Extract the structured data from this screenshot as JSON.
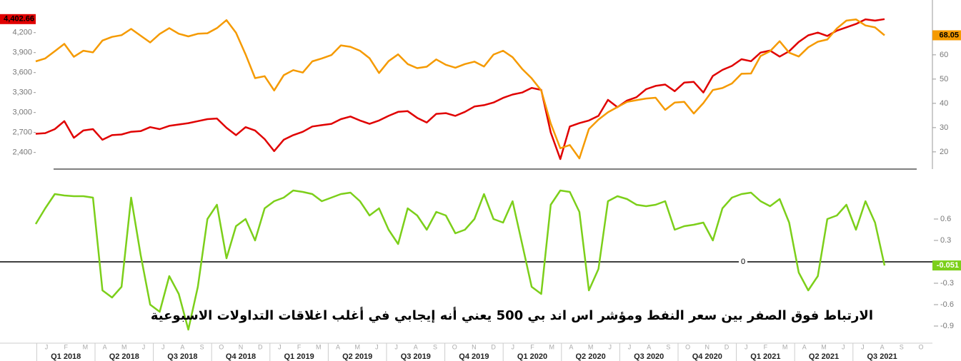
{
  "chart_data": [
    {
      "type": "line",
      "ylim": [
        2150,
        4690
      ],
      "yticks": [
        {
          "value": 2400,
          "label": "2,400"
        },
        {
          "value": 2700,
          "label": "2,700"
        },
        {
          "value": 3000,
          "label": "3,000"
        },
        {
          "value": 3300,
          "label": "3,300"
        },
        {
          "value": 3600,
          "label": "3,600"
        },
        {
          "value": 3900,
          "label": "3,900"
        },
        {
          "value": 4200,
          "label": "4,200"
        }
      ],
      "y2lim": [
        12.9,
        82.6
      ],
      "y2ticks": [
        20,
        30,
        40,
        50,
        60
      ],
      "series": [
        {
          "color": "#e00000",
          "values": [
            2680,
            2690,
            2750,
            2870,
            2620,
            2730,
            2750,
            2590,
            2660,
            2670,
            2710,
            2720,
            2780,
            2750,
            2800,
            2820,
            2840,
            2870,
            2900,
            2910,
            2770,
            2660,
            2780,
            2730,
            2600,
            2420,
            2590,
            2660,
            2710,
            2790,
            2810,
            2830,
            2900,
            2940,
            2880,
            2830,
            2880,
            2950,
            3010,
            3020,
            2920,
            2850,
            2980,
            2990,
            2950,
            3010,
            3090,
            3110,
            3150,
            3220,
            3270,
            3300,
            3370,
            3340,
            2700,
            2300,
            2790,
            2840,
            2880,
            2950,
            3190,
            3080,
            3180,
            3230,
            3350,
            3400,
            3420,
            3320,
            3450,
            3460,
            3300,
            3550,
            3640,
            3700,
            3800,
            3770,
            3900,
            3930,
            3840,
            3920,
            4060,
            4160,
            4200,
            4150,
            4230,
            4280,
            4330,
            4400,
            4380,
            4402.66
          ],
          "value_labels": [
            null,
            null,
            null,
            null,
            null,
            null,
            null,
            null,
            null,
            null,
            null,
            null,
            null,
            null,
            null,
            null,
            null,
            null,
            null,
            null,
            null,
            null,
            null,
            null,
            null,
            null,
            null,
            null,
            null,
            null,
            null,
            null,
            null,
            null,
            null,
            null,
            null,
            null,
            null,
            null,
            null,
            null,
            null,
            null,
            null,
            null,
            null,
            null,
            null,
            null,
            null,
            null,
            null,
            null,
            null,
            null,
            null,
            null,
            null,
            null,
            null,
            null,
            null,
            null,
            null,
            null,
            null,
            null,
            null,
            null,
            null,
            null,
            null,
            null,
            null,
            null,
            null,
            null,
            null,
            null,
            null,
            null,
            null,
            null,
            null,
            null,
            null,
            null,
            null,
            "4,402.66"
          ]
        },
        {
          "color": "#f59a00",
          "axis": "y2",
          "values": [
            57.3,
            58.5,
            61.5,
            64.5,
            59.2,
            61.7,
            61.0,
            65.9,
            67.4,
            68.1,
            70.7,
            67.9,
            65.1,
            68.6,
            71.0,
            68.7,
            67.6,
            68.7,
            68.9,
            71.0,
            74.3,
            69.1,
            60.2,
            50.4,
            51.2,
            45.3,
            51.6,
            53.7,
            52.7,
            57.3,
            58.5,
            59.9,
            63.9,
            63.3,
            61.7,
            58.6,
            52.5,
            57.4,
            60.2,
            56.2,
            54.5,
            55.1,
            58.1,
            55.9,
            54.7,
            56.2,
            57.2,
            55.2,
            60.1,
            61.7,
            59.0,
            54.2,
            50.3,
            45.3,
            31.7,
            21.5,
            22.8,
            17.3,
            29.4,
            33.3,
            36.3,
            38.5,
            40.6,
            41.3,
            42.0,
            42.3,
            37.3,
            40.3,
            40.6,
            35.8,
            40.1,
            45.5,
            46.3,
            48.2,
            52.2,
            52.3,
            59.5,
            61.5,
            65.6,
            60.9,
            59.3,
            63.1,
            65.4,
            66.3,
            70.9,
            74.1,
            74.6,
            72.1,
            71.3,
            68.05
          ]
        }
      ]
    },
    {
      "type": "line",
      "ylim": [
        -1.13,
        1.27
      ],
      "yticks": [
        0.6,
        0.3,
        0,
        -0.3,
        -0.6,
        -0.9
      ],
      "annotation": "الارتباط فوق الصفر بين سعر النفط ومؤشر اس اند بي 500 يعني أنه إيجابي في أغلب اغلاقات التداولات الاسبوعية",
      "series": [
        {
          "color": "#7ccf1a",
          "values": [
            0.53,
            0.75,
            0.95,
            0.93,
            0.92,
            0.92,
            0.9,
            -0.4,
            -0.5,
            -0.35,
            0.9,
            0.1,
            -0.6,
            -0.7,
            -0.2,
            -0.45,
            -0.95,
            -0.35,
            0.6,
            0.8,
            0.05,
            0.5,
            0.6,
            0.3,
            0.75,
            0.85,
            0.9,
            1.0,
            0.98,
            0.95,
            0.85,
            0.9,
            0.95,
            0.97,
            0.85,
            0.65,
            0.75,
            0.45,
            0.25,
            0.75,
            0.65,
            0.45,
            0.7,
            0.65,
            0.4,
            0.45,
            0.6,
            0.95,
            0.6,
            0.55,
            0.85,
            0.25,
            -0.35,
            -0.45,
            0.8,
            1.0,
            0.98,
            0.7,
            -0.4,
            -0.1,
            0.85,
            0.92,
            0.88,
            0.8,
            0.78,
            0.8,
            0.85,
            0.45,
            0.5,
            0.52,
            0.55,
            0.3,
            0.75,
            0.9,
            0.95,
            0.97,
            0.85,
            0.78,
            0.88,
            0.55,
            -0.15,
            -0.4,
            -0.2,
            0.6,
            0.65,
            0.8,
            0.45,
            0.85,
            0.55,
            -0.051
          ]
        }
      ],
      "x_axis": {
        "months": [
          "J",
          "F",
          "M",
          "A",
          "M",
          "J",
          "J",
          "A",
          "S",
          "O",
          "N",
          "D",
          "J",
          "F",
          "M",
          "A",
          "M",
          "J",
          "J",
          "A",
          "S",
          "O",
          "N",
          "D",
          "J",
          "F",
          "M",
          "A",
          "M",
          "J",
          "J",
          "A",
          "S",
          "O",
          "N",
          "D",
          "J",
          "F",
          "M",
          "A",
          "M",
          "J",
          "J",
          "A",
          "S",
          "O"
        ],
        "quarters": [
          "Q1 2018",
          "Q2 2018",
          "Q3 2018",
          "Q4 2018",
          "Q1 2019",
          "Q2 2019",
          "Q3 2019",
          "Q4 2019",
          "Q1 2020",
          "Q2 2020",
          "Q3 2020",
          "Q4 2020",
          "Q1 2021",
          "Q2 2021",
          "Q3 2021"
        ]
      }
    }
  ]
}
